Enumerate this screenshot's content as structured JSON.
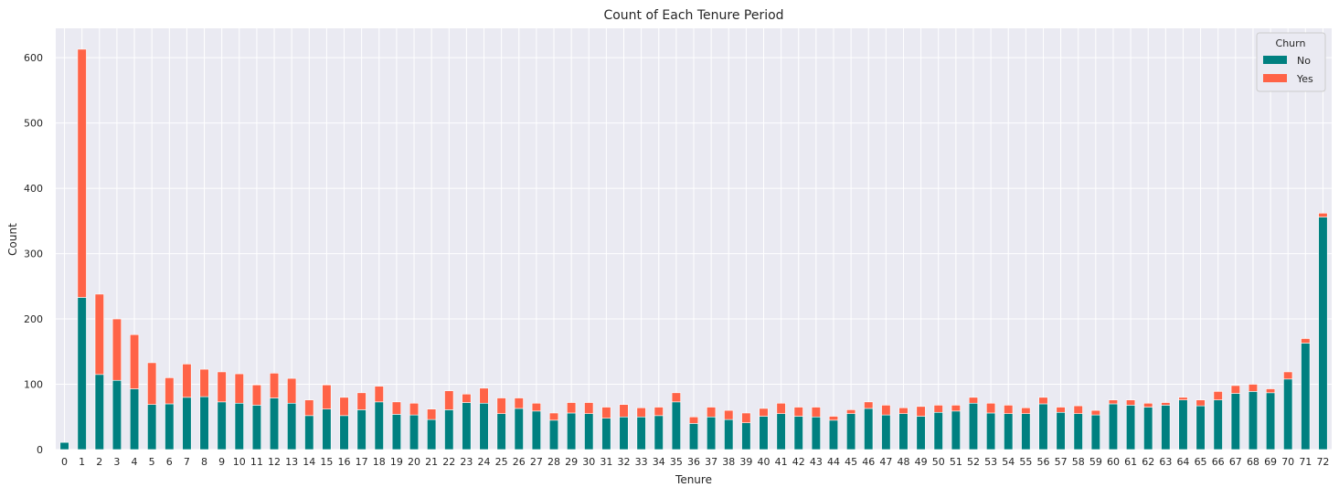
{
  "chart_data": {
    "type": "bar",
    "stacked": true,
    "title": "Count of Each Tenure Period",
    "xlabel": "Tenure",
    "ylabel": "Count",
    "ylim": [
      0,
      645
    ],
    "yticks": [
      0,
      100,
      200,
      300,
      400,
      500,
      600
    ],
    "grid": true,
    "legend_title": "Churn",
    "legend_position": "top-right",
    "categories": [
      "0",
      "1",
      "2",
      "3",
      "4",
      "5",
      "6",
      "7",
      "8",
      "9",
      "10",
      "11",
      "12",
      "13",
      "14",
      "15",
      "16",
      "17",
      "18",
      "19",
      "20",
      "21",
      "22",
      "23",
      "24",
      "25",
      "26",
      "27",
      "28",
      "29",
      "30",
      "31",
      "32",
      "33",
      "34",
      "35",
      "36",
      "37",
      "38",
      "39",
      "40",
      "41",
      "42",
      "43",
      "44",
      "45",
      "46",
      "47",
      "48",
      "49",
      "50",
      "51",
      "52",
      "53",
      "54",
      "55",
      "56",
      "57",
      "58",
      "59",
      "60",
      "61",
      "62",
      "63",
      "64",
      "65",
      "66",
      "67",
      "68",
      "69",
      "70",
      "71",
      "72"
    ],
    "series": [
      {
        "name": "No",
        "color": "#008080",
        "values": [
          11,
          233,
          115,
          106,
          93,
          69,
          70,
          80,
          81,
          73,
          71,
          68,
          79,
          71,
          52,
          62,
          52,
          61,
          73,
          54,
          53,
          46,
          61,
          72,
          71,
          55,
          63,
          59,
          45,
          56,
          55,
          48,
          50,
          50,
          52,
          73,
          40,
          50,
          46,
          41,
          51,
          55,
          51,
          50,
          45,
          55,
          63,
          53,
          55,
          51,
          57,
          59,
          71,
          56,
          55,
          55,
          70,
          57,
          55,
          53,
          70,
          68,
          65,
          68,
          76,
          67,
          76,
          86,
          89,
          87,
          108,
          163,
          356
        ]
      },
      {
        "name": "Yes",
        "color": "#ff6347",
        "values": [
          0,
          380,
          123,
          94,
          83,
          64,
          40,
          51,
          42,
          46,
          45,
          31,
          38,
          38,
          24,
          37,
          28,
          26,
          24,
          19,
          18,
          16,
          29,
          13,
          23,
          24,
          16,
          12,
          11,
          16,
          17,
          17,
          19,
          14,
          13,
          14,
          10,
          15,
          14,
          15,
          12,
          16,
          14,
          15,
          6,
          6,
          10,
          15,
          9,
          15,
          11,
          9,
          9,
          15,
          13,
          9,
          10,
          8,
          12,
          7,
          6,
          8,
          6,
          4,
          4,
          9,
          13,
          12,
          11,
          6,
          11,
          7,
          6
        ]
      }
    ]
  }
}
